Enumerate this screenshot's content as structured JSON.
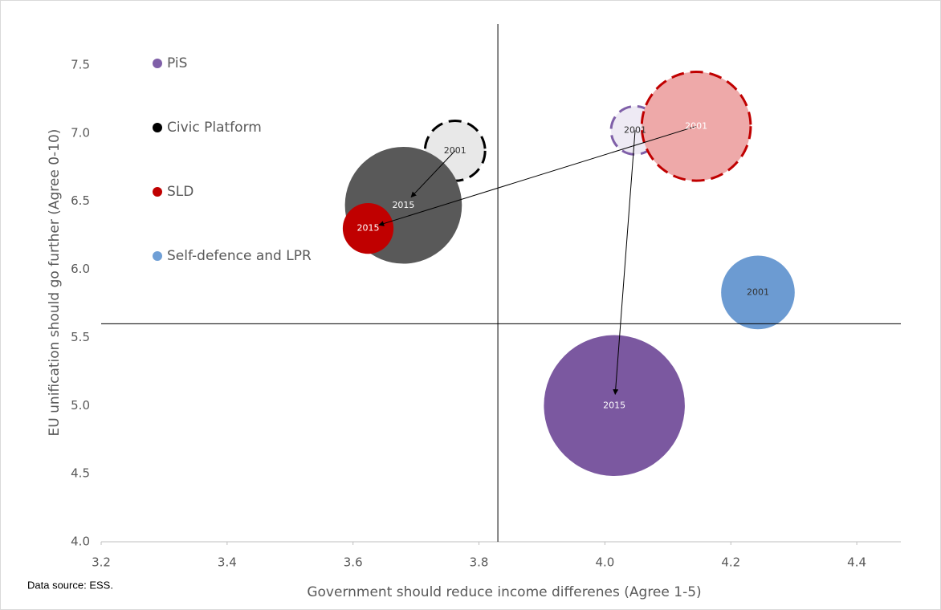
{
  "chart_data": {
    "type": "bubble",
    "xlabel": "Government should reduce income differenes (Agree 1-5)",
    "ylabel": "EU unification should go further (Agree 0-10)",
    "note": "Data source: ESS.",
    "xlim": [
      3.2,
      4.47
    ],
    "xticks": [
      {
        "value": 3.2,
        "label": "3.2"
      },
      {
        "value": 3.4,
        "label": "3.4"
      },
      {
        "value": 3.6,
        "label": "3.6"
      },
      {
        "value": 3.8,
        "label": "3.8"
      },
      {
        "value": 4.0,
        "label": "4.0"
      },
      {
        "value": 4.2,
        "label": "4.2"
      },
      {
        "value": 4.4,
        "label": "4.4"
      }
    ],
    "ylim": [
      4.0,
      7.8
    ],
    "yticks": [
      {
        "value": 4.0,
        "label": "4.0"
      },
      {
        "value": 4.5,
        "label": "4.5"
      },
      {
        "value": 5.0,
        "label": "5.0"
      },
      {
        "value": 5.5,
        "label": "5.5"
      },
      {
        "value": 6.0,
        "label": "6.0"
      },
      {
        "value": 6.5,
        "label": "6.5"
      },
      {
        "value": 7.0,
        "label": "7.0"
      },
      {
        "value": 7.5,
        "label": "7.5"
      }
    ],
    "reference_x": 3.83,
    "reference_y": 5.6,
    "legend": "upper left",
    "series": [
      {
        "name": "PiS",
        "color": "#7f5fa8",
        "x": [
          4.048,
          4.015
        ],
        "values": [
          7.02,
          5.0
        ],
        "sizes": [
          9,
          77
        ],
        "labels": [
          "2001",
          "2015"
        ],
        "fills": [
          "#eeeaf4",
          "#7b58a0"
        ],
        "dashed": [
          true,
          false
        ]
      },
      {
        "name": "Civic Platform",
        "color": "#000000",
        "x": [
          3.762,
          3.68
        ],
        "values": [
          6.87,
          6.47
        ],
        "sizes": [
          14,
          53
        ],
        "labels": [
          "2001",
          "2015"
        ],
        "fills": [
          "#e8e8e8",
          "#595959"
        ],
        "dashed": [
          true,
          false
        ]
      },
      {
        "name": "SLD",
        "color": "#c00000",
        "x": [
          4.145,
          3.624
        ],
        "values": [
          7.05,
          6.3
        ],
        "sizes": [
          46,
          10
        ],
        "labels": [
          "2001",
          "2015"
        ],
        "fills": [
          "#eea9a9",
          "#c00000"
        ],
        "dashed": [
          true,
          false
        ]
      },
      {
        "name": "Self-defence and LPR",
        "color": "#6f9fd6",
        "x": [
          4.243
        ],
        "values": [
          5.83
        ],
        "sizes": [
          21
        ],
        "labels": [
          "2001"
        ],
        "fills": [
          "#6c9bd2"
        ],
        "dashed": [
          false
        ]
      }
    ]
  }
}
